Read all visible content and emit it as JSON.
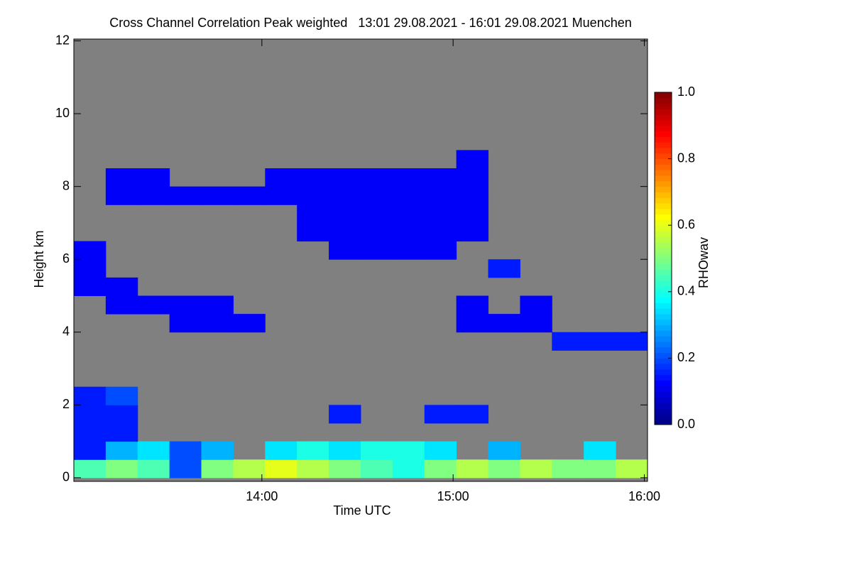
{
  "chart_data": {
    "type": "heatmap",
    "title": "Cross Channel Correlation Peak weighted   13:01 29.08.2021 - 16:01 29.08.2021 Muenchen",
    "x_label": "Time UTC",
    "y_label": "Height km",
    "colorbar_label": "RHOwav",
    "colormap": "jet",
    "missing_color": "#808080",
    "xlim": [
      13.0167,
      16.0167
    ],
    "xticks": [
      {
        "value": 14,
        "label": "14:00"
      },
      {
        "value": 15,
        "label": "15:00"
      },
      {
        "value": 16,
        "label": "16:00"
      }
    ],
    "ylim": [
      -0.1,
      12.05
    ],
    "yticks": [
      0,
      2,
      4,
      6,
      8,
      10,
      12
    ],
    "clim": [
      0,
      1
    ],
    "cticks": [
      {
        "value": 0,
        "label": "0.0"
      },
      {
        "value": 0.2,
        "label": "0.2"
      },
      {
        "value": 0.4,
        "label": "0.4"
      },
      {
        "value": 0.6,
        "label": "0.6"
      },
      {
        "value": 0.8,
        "label": "0.8"
      },
      {
        "value": 1,
        "label": "1.0"
      }
    ],
    "xbins": [
      13.0167,
      13.1833,
      13.35,
      13.5167,
      13.6833,
      13.85,
      14.0167,
      14.1833,
      14.35,
      14.5167,
      14.6833,
      14.85,
      15.0167,
      15.1833,
      15.35,
      15.5167,
      15.6833,
      15.85,
      16.0167
    ],
    "ybins": [
      0,
      0.5,
      1,
      1.5,
      2,
      2.5,
      3,
      3.5,
      4,
      4.5,
      5,
      5.5,
      6,
      6.5,
      7,
      7.5,
      8,
      8.5,
      9,
      9.5,
      10,
      10.5,
      11,
      11.5,
      12
    ],
    "values": [
      [
        0.45,
        0.5,
        0.45,
        0.2,
        0.5,
        0.55,
        0.6,
        0.55,
        0.5,
        0.45,
        0.4,
        0.5,
        0.55,
        0.5,
        0.55,
        0.5,
        0.5,
        0.55
      ],
      [
        0.15,
        0.3,
        0.35,
        0.2,
        0.3,
        null,
        0.35,
        0.4,
        0.35,
        0.4,
        0.4,
        0.35,
        null,
        0.3,
        null,
        null,
        0.35,
        null
      ],
      [
        0.15,
        0.15,
        null,
        null,
        null,
        null,
        null,
        null,
        null,
        null,
        null,
        null,
        null,
        null,
        null,
        null,
        null,
        null
      ],
      [
        0.15,
        0.15,
        null,
        null,
        null,
        null,
        null,
        null,
        0.15,
        null,
        null,
        0.15,
        0.15,
        null,
        null,
        null,
        null,
        null
      ],
      [
        0.15,
        0.2,
        null,
        null,
        null,
        null,
        null,
        null,
        null,
        null,
        null,
        null,
        null,
        null,
        null,
        null,
        null,
        null
      ],
      [
        null,
        null,
        null,
        null,
        null,
        null,
        null,
        null,
        null,
        null,
        null,
        null,
        null,
        null,
        null,
        null,
        null,
        null
      ],
      [
        null,
        null,
        null,
        null,
        null,
        null,
        null,
        null,
        null,
        null,
        null,
        null,
        null,
        null,
        null,
        null,
        null,
        null
      ],
      [
        null,
        null,
        null,
        null,
        null,
        null,
        null,
        null,
        null,
        null,
        null,
        null,
        null,
        null,
        null,
        0.15,
        0.15,
        0.15
      ],
      [
        null,
        null,
        null,
        0.12,
        0.12,
        0.12,
        null,
        null,
        null,
        null,
        null,
        null,
        0.12,
        0.12,
        0.12,
        null,
        null,
        null
      ],
      [
        null,
        0.12,
        0.12,
        0.12,
        0.12,
        null,
        null,
        null,
        null,
        null,
        null,
        null,
        0.12,
        null,
        0.12,
        null,
        null,
        null
      ],
      [
        0.12,
        0.12,
        null,
        null,
        null,
        null,
        null,
        null,
        null,
        null,
        null,
        null,
        null,
        null,
        null,
        null,
        null,
        null
      ],
      [
        0.12,
        null,
        null,
        null,
        null,
        null,
        null,
        null,
        null,
        null,
        null,
        null,
        null,
        0.15,
        null,
        null,
        null,
        null
      ],
      [
        0.12,
        null,
        null,
        null,
        null,
        null,
        null,
        null,
        0.12,
        0.12,
        0.12,
        0.12,
        null,
        null,
        null,
        null,
        null,
        null
      ],
      [
        null,
        null,
        null,
        null,
        null,
        null,
        null,
        0.12,
        0.12,
        0.12,
        0.12,
        0.12,
        0.12,
        null,
        null,
        null,
        null,
        null
      ],
      [
        null,
        null,
        null,
        null,
        null,
        null,
        null,
        0.12,
        0.12,
        0.12,
        0.12,
        0.12,
        0.12,
        null,
        null,
        null,
        null,
        null
      ],
      [
        null,
        0.12,
        0.12,
        0.12,
        0.12,
        0.12,
        0.12,
        0.12,
        0.12,
        0.12,
        0.12,
        0.12,
        0.12,
        null,
        null,
        null,
        null,
        null
      ],
      [
        null,
        0.12,
        0.12,
        null,
        null,
        null,
        0.12,
        0.12,
        0.12,
        0.12,
        0.12,
        0.12,
        0.12,
        null,
        null,
        null,
        null,
        null
      ],
      [
        null,
        null,
        null,
        null,
        null,
        null,
        null,
        null,
        null,
        null,
        null,
        null,
        0.12,
        null,
        null,
        null,
        null,
        null
      ],
      [
        null,
        null,
        null,
        null,
        null,
        null,
        null,
        null,
        null,
        null,
        null,
        null,
        null,
        null,
        null,
        null,
        null,
        null
      ],
      [
        null,
        null,
        null,
        null,
        null,
        null,
        null,
        null,
        null,
        null,
        null,
        null,
        null,
        null,
        null,
        null,
        null,
        null
      ],
      [
        null,
        null,
        null,
        null,
        null,
        null,
        null,
        null,
        null,
        null,
        null,
        null,
        null,
        null,
        null,
        null,
        null,
        null
      ],
      [
        null,
        null,
        null,
        null,
        null,
        null,
        null,
        null,
        null,
        null,
        null,
        null,
        null,
        null,
        null,
        null,
        null,
        null
      ],
      [
        null,
        null,
        null,
        null,
        null,
        null,
        null,
        null,
        null,
        null,
        null,
        null,
        null,
        null,
        null,
        null,
        null,
        null
      ],
      [
        null,
        null,
        null,
        null,
        null,
        null,
        null,
        null,
        null,
        null,
        null,
        null,
        null,
        null,
        null,
        null,
        null,
        null
      ]
    ]
  }
}
